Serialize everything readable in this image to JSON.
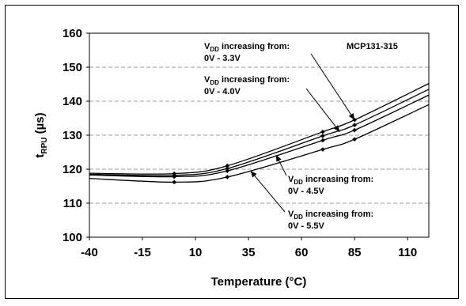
{
  "chart_data": {
    "type": "line",
    "title": "",
    "xlabel": "Temperature (°C)",
    "ylabel": {
      "main": "t",
      "sub": "RPU",
      "units": " (µs)"
    },
    "xlim": [
      -40,
      120
    ],
    "ylim": [
      100,
      160
    ],
    "x_ticks": [
      -40,
      -15,
      10,
      35,
      60,
      85,
      110
    ],
    "y_ticks": [
      100,
      110,
      120,
      130,
      140,
      150,
      160
    ],
    "grid": "horizontal dashed",
    "part_label": "MCP131-315",
    "series": [
      {
        "label_prefix": "V",
        "label_sub": "DD",
        "label_line1": " increasing from:",
        "label_line2": "0V - 3.3V",
        "x": [
          -40,
          0,
          25,
          70,
          85,
          120
        ],
        "y": [
          118.8,
          118.7,
          121.0,
          131.0,
          134.5,
          145.2
        ]
      },
      {
        "label_prefix": "V",
        "label_sub": "DD",
        "label_line1": " increasing from:",
        "label_line2": "0V - 4.0V",
        "x": [
          -40,
          0,
          25,
          70,
          85,
          120
        ],
        "y": [
          118.5,
          118.2,
          120.2,
          129.8,
          133.0,
          143.5
        ]
      },
      {
        "label_prefix": "V",
        "label_sub": "DD",
        "label_line1": " increasing from:",
        "label_line2": "0V - 4.5V",
        "x": [
          -40,
          0,
          25,
          70,
          85,
          120
        ],
        "y": [
          118.3,
          117.8,
          119.5,
          128.5,
          131.5,
          141.8
        ]
      },
      {
        "label_prefix": "V",
        "label_sub": "DD",
        "label_line1": " increasing from:",
        "label_line2": "0V - 5.5V",
        "x": [
          -40,
          0,
          25,
          70,
          85,
          120
        ],
        "y": [
          117.3,
          116.2,
          117.7,
          125.8,
          128.8,
          139.0
        ]
      }
    ]
  }
}
